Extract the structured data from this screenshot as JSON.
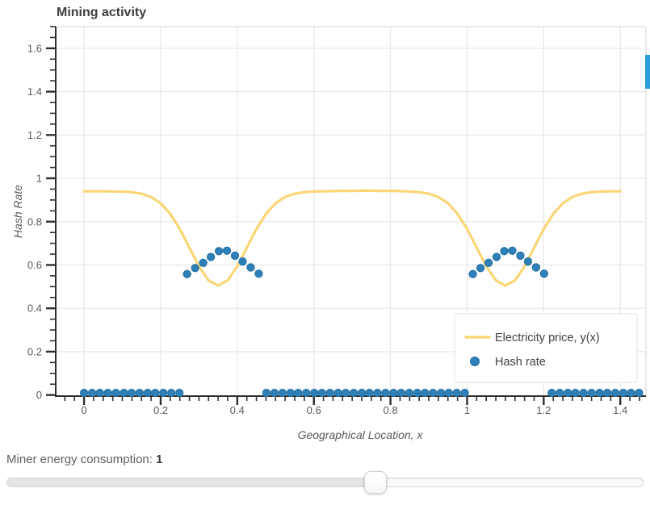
{
  "chart_data": {
    "type": "line+scatter",
    "title": "Mining activity",
    "xlabel": "Geographical Location, x",
    "ylabel": "Hash Rate",
    "xlim": [
      -0.074,
      1.467
    ],
    "ylim": [
      -0.005,
      1.7
    ],
    "grid": true,
    "x_ticks": {
      "values": [
        0,
        0.2,
        0.4,
        0.6,
        0.8,
        1,
        1.2,
        1.4
      ],
      "labels": [
        "0",
        "0.2",
        "0.4",
        "0.6",
        "0.8",
        "1",
        "1.2",
        "1.4"
      ],
      "minor_step": 0.025
    },
    "y_ticks": {
      "values": [
        0,
        0.2,
        0.4,
        0.6,
        0.8,
        1,
        1.2,
        1.4,
        1.6
      ],
      "labels": [
        "0",
        "0.2",
        "0.4",
        "0.6",
        "0.8",
        "1",
        "1.2",
        "1.4",
        "1.6"
      ],
      "minor_step": 0.05
    },
    "legend": {
      "position": "bottom-right",
      "items": [
        {
          "label": "Electricity price, y(x)",
          "marker": "line",
          "color": "#fbd46f"
        },
        {
          "label": "Hash rate",
          "marker": "circle",
          "color": "#2e80b9"
        }
      ]
    },
    "series": [
      {
        "name": "Electricity price, y(x)",
        "type": "line",
        "color": "#fbd46f",
        "line_width": 3.2,
        "x": [
          0,
          0.025,
          0.05,
          0.075,
          0.1,
          0.125,
          0.15,
          0.175,
          0.2,
          0.225,
          0.25,
          0.275,
          0.3,
          0.325,
          0.35,
          0.375,
          0.4,
          0.425,
          0.45,
          0.475,
          0.5,
          0.525,
          0.55,
          0.575,
          0.6,
          0.625,
          0.65,
          0.675,
          0.7,
          0.725,
          0.75,
          0.775,
          0.8,
          0.825,
          0.85,
          0.875,
          0.9,
          0.925,
          0.95,
          0.975,
          1,
          1.025,
          1.05,
          1.075,
          1.1,
          1.125,
          1.15,
          1.175,
          1.2,
          1.225,
          1.25,
          1.275,
          1.3,
          1.325,
          1.35,
          1.375,
          1.4
        ],
        "y": [
          0.94,
          0.94,
          0.94,
          0.939,
          0.939,
          0.936,
          0.929,
          0.914,
          0.885,
          0.836,
          0.766,
          0.68,
          0.594,
          0.529,
          0.505,
          0.529,
          0.594,
          0.68,
          0.766,
          0.836,
          0.885,
          0.914,
          0.929,
          0.936,
          0.939,
          0.94,
          0.941,
          0.942,
          0.942,
          0.943,
          0.943,
          0.942,
          0.942,
          0.941,
          0.939,
          0.936,
          0.929,
          0.914,
          0.885,
          0.836,
          0.766,
          0.68,
          0.594,
          0.529,
          0.505,
          0.529,
          0.594,
          0.68,
          0.766,
          0.836,
          0.885,
          0.914,
          0.929,
          0.936,
          0.939,
          0.94,
          0.94
        ]
      },
      {
        "name": "Hash rate",
        "type": "scatter",
        "color": "#2e80b9",
        "stroke": "#2472a4",
        "size": 9,
        "x": [
          0,
          0.021,
          0.041,
          0.062,
          0.083,
          0.104,
          0.124,
          0.145,
          0.166,
          0.186,
          0.207,
          0.228,
          0.249,
          0.269,
          0.29,
          0.311,
          0.331,
          0.352,
          0.373,
          0.394,
          0.414,
          0.435,
          0.456,
          0.476,
          0.497,
          0.518,
          0.539,
          0.559,
          0.58,
          0.601,
          0.621,
          0.642,
          0.663,
          0.683,
          0.704,
          0.725,
          0.745,
          0.766,
          0.787,
          0.808,
          0.828,
          0.849,
          0.87,
          0.89,
          0.911,
          0.932,
          0.952,
          0.973,
          0.994,
          1.015,
          1.035,
          1.056,
          1.077,
          1.097,
          1.118,
          1.139,
          1.159,
          1.18,
          1.201,
          1.221,
          1.242,
          1.263,
          1.283,
          1.304,
          1.325,
          1.346,
          1.366,
          1.387,
          1.408,
          1.428,
          1.449
        ],
        "y": [
          0.01,
          0.01,
          0.01,
          0.01,
          0.01,
          0.01,
          0.01,
          0.01,
          0.01,
          0.01,
          0.01,
          0.01,
          0.01,
          0.558,
          0.586,
          0.61,
          0.637,
          0.664,
          0.666,
          0.643,
          0.616,
          0.589,
          0.56,
          0.01,
          0.01,
          0.01,
          0.01,
          0.01,
          0.01,
          0.01,
          0.01,
          0.01,
          0.01,
          0.01,
          0.01,
          0.01,
          0.01,
          0.01,
          0.01,
          0.01,
          0.01,
          0.01,
          0.01,
          0.01,
          0.01,
          0.01,
          0.01,
          0.01,
          0.01,
          0.558,
          0.586,
          0.61,
          0.637,
          0.664,
          0.666,
          0.643,
          0.616,
          0.589,
          0.56,
          0.01,
          0.01,
          0.01,
          0.01,
          0.01,
          0.01,
          0.01,
          0.01,
          0.01,
          0.01,
          0.01,
          0.01
        ]
      }
    ]
  },
  "slider": {
    "label_text": "Miner energy consumption: ",
    "value": "1",
    "position_pct": 58
  },
  "accents": {
    "scrollbar_color": "#2b9fd9"
  },
  "style_colors": {
    "grid": "#e9e9e9",
    "axis": "#2f2f2f",
    "tick_label": "#5a5a5a",
    "legend_text": "#3f3f3f"
  }
}
